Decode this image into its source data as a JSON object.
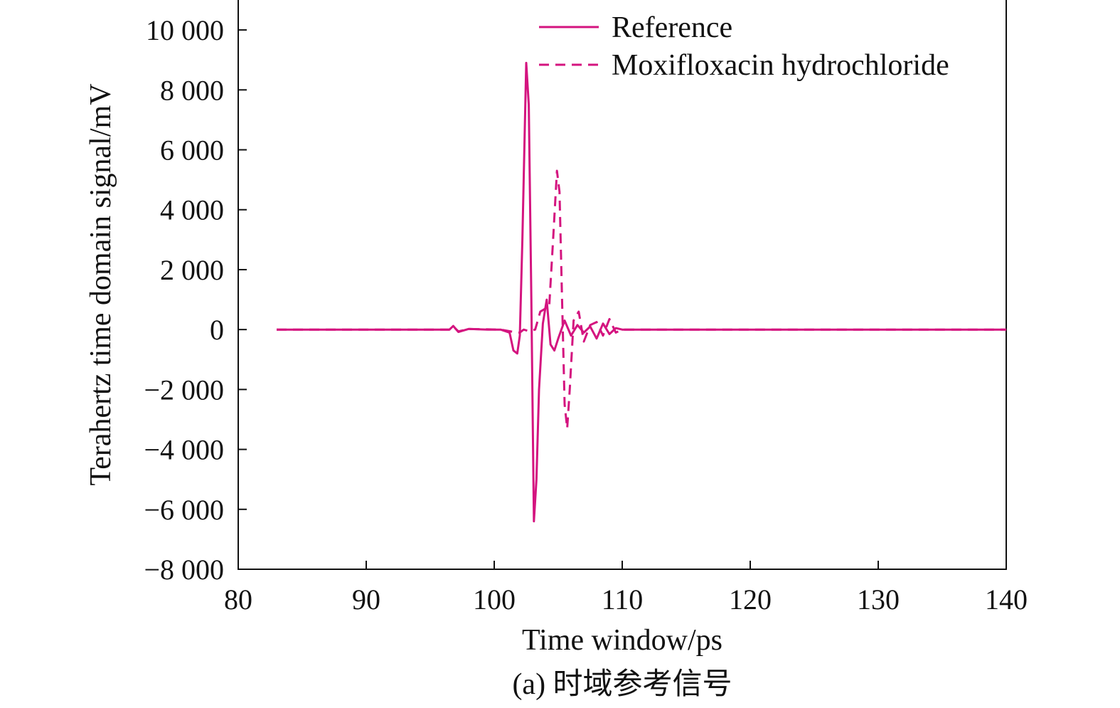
{
  "chart_data": {
    "type": "line",
    "xlabel": "Time window/ps",
    "ylabel": "Terahertz time domain signal/mV",
    "caption": "(a) 时域参考信号",
    "xlim": [
      80,
      140
    ],
    "ylim": [
      -8000,
      11000
    ],
    "x_ticks": [
      80,
      90,
      100,
      110,
      120,
      130,
      140
    ],
    "x_tick_labels": [
      "80",
      "90",
      "100",
      "110",
      "120",
      "130",
      "140"
    ],
    "y_ticks": [
      -8000,
      -6000,
      -4000,
      -2000,
      0,
      2000,
      4000,
      6000,
      8000,
      10000
    ],
    "y_tick_labels": [
      "−8 000",
      "−6 000",
      "−4 000",
      "−2 000",
      "0",
      "2 000",
      "4 000",
      "6 000",
      "8 000",
      "10 000"
    ],
    "grid": false,
    "legend_position": "top-right",
    "color": "#d4147f",
    "series": [
      {
        "name": "Reference",
        "style": "solid",
        "x": [
          83,
          90,
          96.5,
          96.8,
          97.2,
          98,
          99.5,
          100.5,
          101.2,
          101.5,
          101.8,
          102.0,
          102.2,
          102.5,
          102.7,
          102.9,
          103.1,
          103.3,
          103.5,
          103.8,
          104.1,
          104.4,
          104.7,
          105.0,
          105.5,
          106.0,
          106.5,
          107.0,
          107.5,
          108.0,
          108.5,
          109.0,
          109.5,
          110,
          115,
          120,
          125,
          130,
          135,
          140
        ],
        "y": [
          0,
          0,
          0,
          120,
          -80,
          20,
          0,
          0,
          -100,
          -700,
          -800,
          -200,
          3000,
          8900,
          7500,
          1000,
          -6400,
          -5000,
          -2000,
          200,
          1000,
          -500,
          -700,
          -300,
          300,
          -200,
          150,
          -100,
          100,
          -300,
          200,
          -150,
          50,
          0,
          0,
          0,
          0,
          0,
          0,
          0
        ]
      },
      {
        "name": "Moxifloxacin hydrochloride",
        "style": "dashed",
        "x": [
          83,
          96.5,
          96.8,
          97.2,
          98,
          100.5,
          101.5,
          102.0,
          102.3,
          102.7,
          103.2,
          103.6,
          104.0,
          104.3,
          104.6,
          104.9,
          105.1,
          105.3,
          105.5,
          105.7,
          105.9,
          106.2,
          106.6,
          107.0,
          107.5,
          108.0,
          108.5,
          109.0,
          109.5,
          110,
          115,
          120,
          125,
          130,
          135,
          140
        ],
        "y": [
          0,
          0,
          100,
          -60,
          20,
          0,
          -80,
          -100,
          0,
          -50,
          0,
          600,
          700,
          800,
          3000,
          5300,
          4600,
          1000,
          -2500,
          -3300,
          -2000,
          300,
          600,
          -400,
          150,
          250,
          -200,
          350,
          -100,
          0,
          0,
          0,
          0,
          0,
          0,
          0
        ]
      }
    ]
  }
}
